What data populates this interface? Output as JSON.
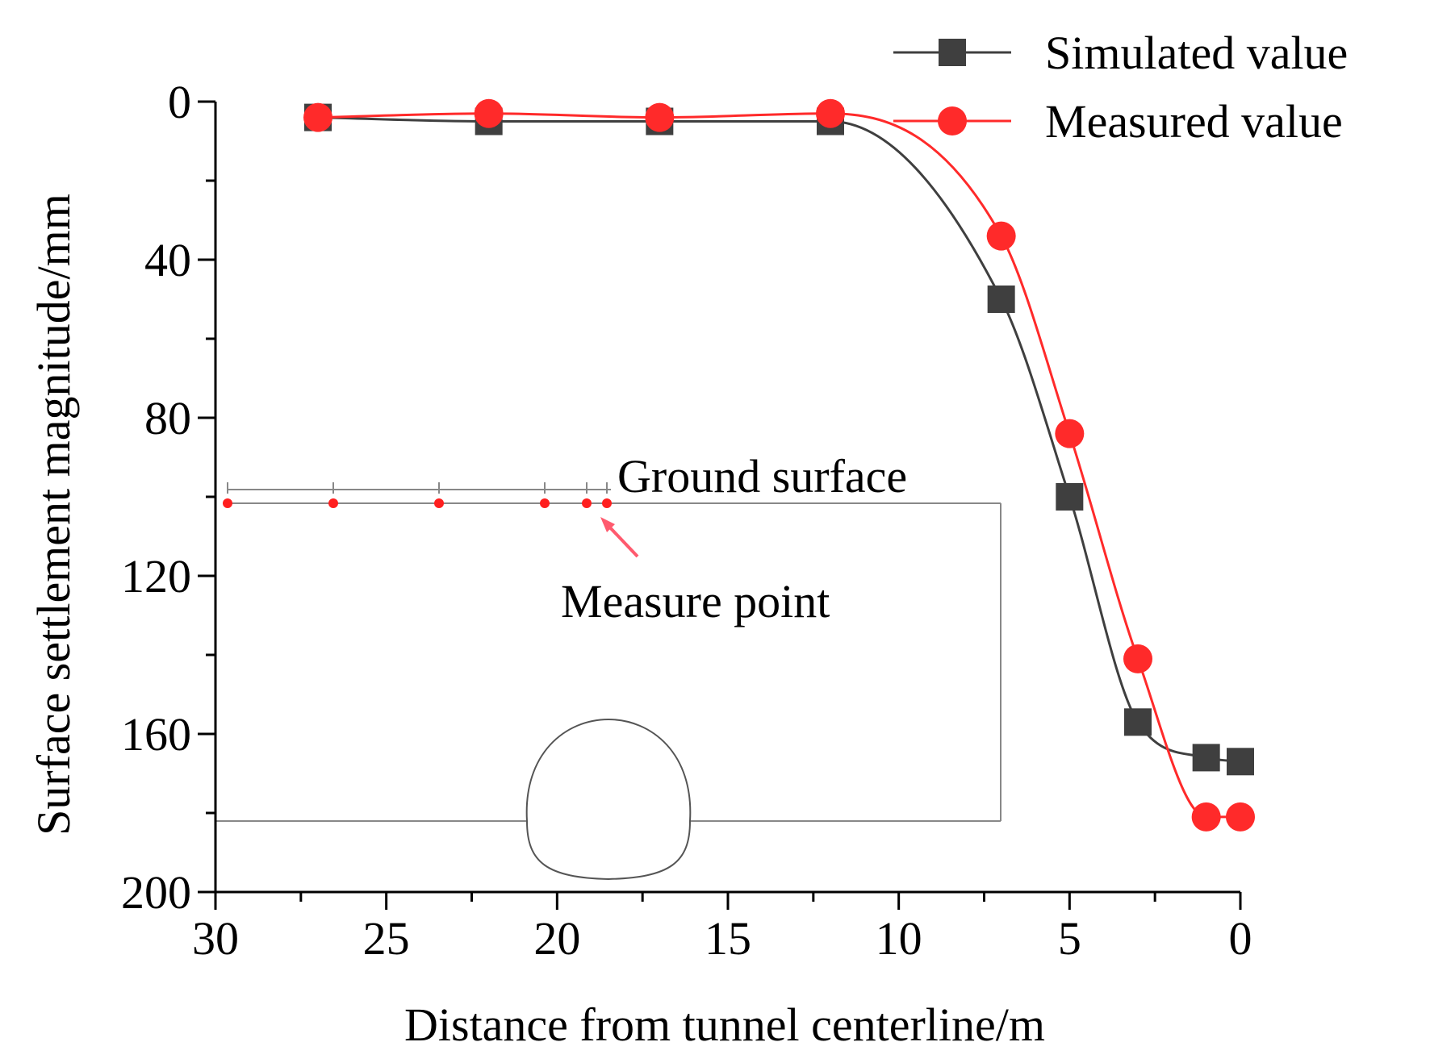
{
  "chart_data": {
    "type": "line",
    "title": "",
    "xlabel": "Distance from tunnel centerline/m",
    "ylabel": "Surface settlement magnitude/mm",
    "xlim": [
      30,
      0
    ],
    "ylim": [
      0,
      200
    ],
    "y_inverted": true,
    "x_ticks": [
      30,
      25,
      20,
      15,
      10,
      5,
      0
    ],
    "y_ticks": [
      0,
      40,
      80,
      120,
      160,
      200
    ],
    "x_tick_labels": [
      "30",
      "25",
      "20",
      "15",
      "10",
      "5",
      "0"
    ],
    "y_tick_labels": [
      "0",
      "40",
      "80",
      "120",
      "160",
      "200"
    ],
    "legend_position": "top-right",
    "series": [
      {
        "name": "Simulated value",
        "color": "#3f3f3f",
        "marker": "square",
        "x": [
          27,
          22,
          17,
          12,
          7,
          5,
          3,
          1,
          0
        ],
        "y": [
          4,
          5,
          5,
          5,
          50,
          100,
          157,
          166,
          167
        ]
      },
      {
        "name": "Measured value",
        "color": "#ff2a2a",
        "marker": "circle",
        "x": [
          27,
          22,
          17,
          12,
          7,
          5,
          3,
          1,
          0
        ],
        "y": [
          4,
          3,
          4,
          3,
          34,
          84,
          141,
          181,
          181
        ]
      }
    ],
    "annotations": {
      "ground_surface": "Ground surface",
      "measure_point": "Measure point"
    }
  }
}
